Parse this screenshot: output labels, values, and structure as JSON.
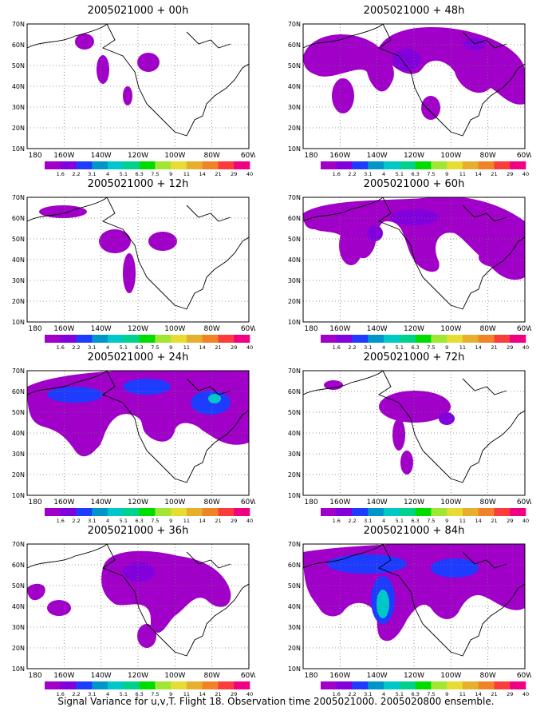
{
  "footer": "Signal Variance for u,v,T. Flight 18. Observation time 2005021000. 2005020800 ensemble.",
  "lat_labels": [
    "70N",
    "60N",
    "50N",
    "40N",
    "30N",
    "20N",
    "10N"
  ],
  "lon_labels": [
    "180",
    "160W",
    "140W",
    "120W",
    "100W",
    "80W",
    "60W"
  ],
  "colorbar": {
    "labels": [
      "1.6",
      "2.2",
      "3.1",
      "4",
      "5.1",
      "6.3",
      "7.5",
      "9",
      "11",
      "14",
      "21",
      "29",
      "40"
    ],
    "colors": [
      "#a000c8",
      "#8200dc",
      "#1e3cff",
      "#0096c8",
      "#00c8c8",
      "#00d28c",
      "#00dc00",
      "#a0e632",
      "#e6dc32",
      "#e6af2d",
      "#f08228",
      "#fa3c3c",
      "#f00082"
    ]
  },
  "panels": [
    {
      "title": "2005021000 + 00h"
    },
    {
      "title": "2005021000 + 48h"
    },
    {
      "title": "2005021000 + 12h"
    },
    {
      "title": "2005021000 + 60h"
    },
    {
      "title": "2005021000 + 24h"
    },
    {
      "title": "2005021000 + 72h"
    },
    {
      "title": "2005021000 + 36h"
    },
    {
      "title": "2005021000 + 84h"
    }
  ]
}
